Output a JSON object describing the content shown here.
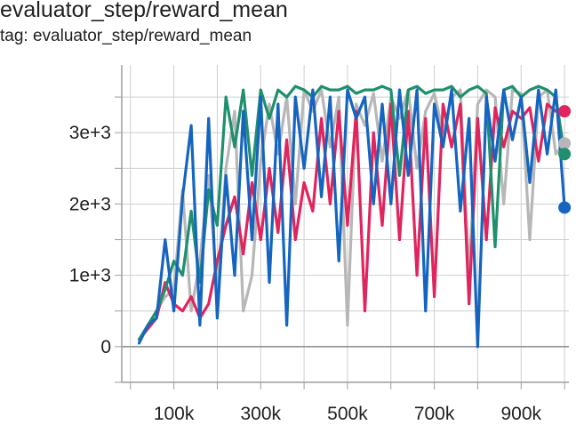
{
  "card": {
    "title": "evaluator_step/reward_mean",
    "subtitle": "tag: evaluator_step/reward_mean"
  },
  "colors": {
    "grid": "#cfcfcf",
    "axis": "#9e9e9e",
    "series": [
      "#b7b7b7",
      "#e0245e",
      "#1f8f6e",
      "#1565c0"
    ]
  },
  "chart_data": {
    "type": "line",
    "title": "evaluator_step/reward_mean",
    "xlabel": "",
    "ylabel": "",
    "xlim": [
      -20000,
      1010000
    ],
    "ylim": [
      -500,
      3950
    ],
    "grid": true,
    "legend": "none",
    "x_ticks": [
      {
        "value": 100000,
        "label": "100k"
      },
      {
        "value": 300000,
        "label": "300k"
      },
      {
        "value": 500000,
        "label": "500k"
      },
      {
        "value": 700000,
        "label": "700k"
      },
      {
        "value": 900000,
        "label": "900k"
      }
    ],
    "y_ticks": [
      {
        "value": 0,
        "label": "0"
      },
      {
        "value": 1000,
        "label": "1e+3"
      },
      {
        "value": 2000,
        "label": "2e+3"
      },
      {
        "value": 3000,
        "label": "3e+3"
      }
    ],
    "series": [
      {
        "color": "#b7b7b7",
        "x": [
          20000,
          40000,
          60000,
          80000,
          100000,
          120000,
          140000,
          160000,
          180000,
          200000,
          220000,
          240000,
          260000,
          280000,
          300000,
          320000,
          340000,
          360000,
          380000,
          400000,
          420000,
          440000,
          460000,
          480000,
          500000,
          520000,
          540000,
          560000,
          580000,
          600000,
          620000,
          640000,
          660000,
          680000,
          700000,
          720000,
          740000,
          760000,
          780000,
          800000,
          820000,
          840000,
          860000,
          880000,
          900000,
          920000,
          940000,
          960000,
          980000,
          1000000
        ],
        "y": [
          100,
          300,
          500,
          700,
          800,
          2200,
          500,
          1200,
          2400,
          800,
          2500,
          3300,
          500,
          1000,
          2600,
          3400,
          2700,
          3500,
          2000,
          3600,
          3300,
          3600,
          2800,
          3500,
          300,
          3400,
          3100,
          3550,
          2600,
          3500,
          3200,
          3600,
          2500,
          3300,
          3550,
          3000,
          3500,
          3600,
          1000,
          3400,
          3600,
          3500,
          2000,
          3600,
          3550,
          1500,
          3500,
          3600,
          2700,
          2850
        ]
      },
      {
        "color": "#e0245e",
        "x": [
          20000,
          40000,
          60000,
          80000,
          100000,
          120000,
          140000,
          160000,
          180000,
          200000,
          220000,
          240000,
          260000,
          280000,
          300000,
          320000,
          340000,
          360000,
          380000,
          400000,
          420000,
          440000,
          460000,
          480000,
          500000,
          520000,
          540000,
          560000,
          580000,
          600000,
          620000,
          640000,
          660000,
          680000,
          700000,
          720000,
          740000,
          760000,
          780000,
          800000,
          820000,
          840000,
          860000,
          880000,
          900000,
          920000,
          940000,
          960000,
          980000,
          1000000
        ],
        "y": [
          100,
          250,
          400,
          900,
          600,
          500,
          700,
          400,
          600,
          1200,
          1700,
          2100,
          1300,
          2300,
          1500,
          2500,
          1600,
          2900,
          1500,
          2300,
          1900,
          3200,
          2000,
          3300,
          1700,
          3300,
          500,
          3000,
          1700,
          3400,
          1500,
          3300,
          1000,
          3200,
          700,
          3400,
          2800,
          3400,
          600,
          3200,
          1500,
          3350,
          2800,
          3300,
          3200,
          3350,
          2600,
          3400,
          3300,
          3300
        ]
      },
      {
        "color": "#1f8f6e",
        "x": [
          20000,
          40000,
          60000,
          80000,
          100000,
          120000,
          140000,
          160000,
          180000,
          200000,
          220000,
          240000,
          260000,
          280000,
          300000,
          320000,
          340000,
          360000,
          380000,
          400000,
          420000,
          440000,
          460000,
          480000,
          500000,
          520000,
          540000,
          560000,
          580000,
          600000,
          620000,
          640000,
          660000,
          680000,
          700000,
          720000,
          740000,
          760000,
          780000,
          800000,
          820000,
          840000,
          860000,
          880000,
          900000,
          920000,
          940000,
          960000,
          980000,
          1000000
        ],
        "y": [
          100,
          300,
          500,
          800,
          1200,
          1000,
          1900,
          900,
          2200,
          1700,
          3500,
          2800,
          3600,
          2400,
          3600,
          3200,
          3600,
          3500,
          3650,
          3600,
          3500,
          3650,
          3600,
          3600,
          3650,
          3550,
          3600,
          3600,
          3650,
          3600,
          2400,
          3600,
          3650,
          3550,
          3600,
          3600,
          3650,
          3500,
          3600,
          3650,
          3550,
          1400,
          3600,
          3650,
          3500,
          3600,
          3650,
          3600,
          3500,
          2700
        ]
      },
      {
        "color": "#1565c0",
        "x": [
          20000,
          40000,
          60000,
          80000,
          100000,
          120000,
          140000,
          160000,
          180000,
          200000,
          220000,
          240000,
          260000,
          280000,
          300000,
          320000,
          340000,
          360000,
          380000,
          400000,
          420000,
          440000,
          460000,
          480000,
          500000,
          520000,
          540000,
          560000,
          580000,
          600000,
          620000,
          640000,
          660000,
          680000,
          700000,
          720000,
          740000,
          760000,
          780000,
          800000,
          820000,
          840000,
          860000,
          880000,
          900000,
          920000,
          940000,
          960000,
          980000,
          1000000
        ],
        "y": [
          50,
          300,
          400,
          1500,
          500,
          2100,
          3100,
          300,
          3200,
          400,
          2400,
          1000,
          3300,
          1500,
          3500,
          900,
          3400,
          300,
          3500,
          2500,
          3600,
          2100,
          3500,
          1200,
          3600,
          3200,
          3500,
          2000,
          3400,
          2000,
          3600,
          2400,
          3600,
          500,
          3400,
          2800,
          3600,
          1900,
          3200,
          0,
          3500,
          2600,
          3600,
          2900,
          3500,
          2300,
          3600,
          2700,
          3600,
          1950
        ]
      }
    ]
  }
}
